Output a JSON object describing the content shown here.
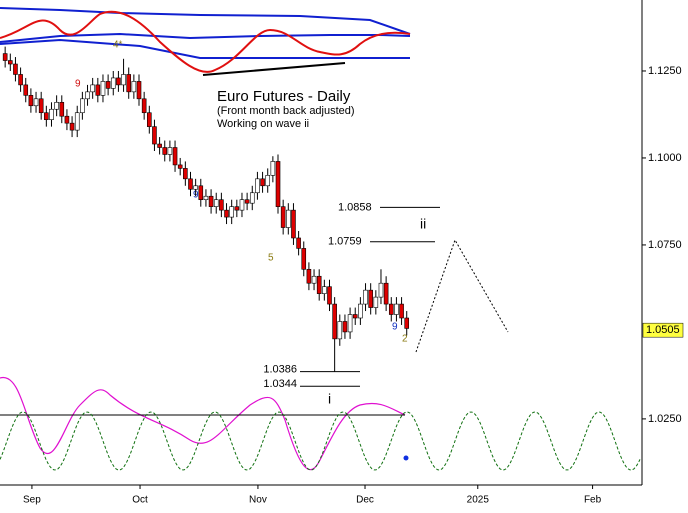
{
  "chart_data": {
    "type": "candlestick",
    "title": "Euro Futures - Daily",
    "subtitle": "(Front month back adjusted)",
    "note": "Working on wave ii",
    "x": [
      1,
      2,
      3,
      4,
      5,
      6,
      7,
      8,
      9,
      10,
      11,
      12,
      13,
      14,
      15,
      16,
      17,
      18,
      19,
      20,
      21,
      22,
      23,
      24,
      25,
      26,
      27,
      28,
      29,
      30,
      31,
      32,
      33,
      34,
      35,
      36,
      37,
      38,
      39,
      40,
      41,
      42,
      43,
      44,
      45,
      46,
      47,
      48,
      49,
      50,
      51,
      52,
      53,
      54,
      55,
      56,
      57,
      58,
      59,
      60,
      61,
      62,
      63,
      64,
      65,
      66,
      67,
      68,
      69,
      70,
      71,
      72,
      73,
      74,
      75,
      76,
      77,
      78,
      79
    ],
    "open": [
      1.13,
      1.128,
      1.127,
      1.124,
      1.121,
      1.118,
      1.115,
      1.117,
      1.113,
      1.111,
      1.114,
      1.116,
      1.112,
      1.11,
      1.108,
      1.113,
      1.117,
      1.119,
      1.121,
      1.118,
      1.122,
      1.12,
      1.123,
      1.121,
      1.124,
      1.119,
      1.122,
      1.117,
      1.113,
      1.109,
      1.104,
      1.103,
      1.101,
      1.103,
      1.098,
      1.097,
      1.094,
      1.091,
      1.092,
      1.088,
      1.089,
      1.086,
      1.088,
      1.085,
      1.083,
      1.086,
      1.085,
      1.088,
      1.087,
      1.09,
      1.094,
      1.092,
      1.095,
      1.099,
      1.086,
      1.08,
      1.085,
      1.077,
      1.074,
      1.068,
      1.064,
      1.066,
      1.061,
      1.063,
      1.058,
      1.048,
      1.053,
      1.05,
      1.055,
      1.054,
      1.058,
      1.062,
      1.057,
      1.06,
      1.064,
      1.058,
      1.055,
      1.058,
      1.054
    ],
    "high": [
      1.132,
      1.13,
      1.129,
      1.126,
      1.123,
      1.12,
      1.119,
      1.119,
      1.115,
      1.116,
      1.118,
      1.118,
      1.114,
      1.112,
      1.115,
      1.119,
      1.121,
      1.123,
      1.123,
      1.124,
      1.124,
      1.125,
      1.125,
      1.1285,
      1.126,
      1.124,
      1.124,
      1.119,
      1.115,
      1.111,
      1.106,
      1.105,
      1.105,
      1.105,
      1.1,
      1.099,
      1.096,
      1.094,
      1.094,
      1.091,
      1.091,
      1.09,
      1.09,
      1.087,
      1.088,
      1.088,
      1.09,
      1.09,
      1.092,
      1.096,
      1.096,
      1.097,
      1.1005,
      1.101,
      1.088,
      1.087,
      1.087,
      1.079,
      1.076,
      1.07,
      1.068,
      1.068,
      1.065,
      1.065,
      1.06,
      1.055,
      1.055,
      1.057,
      1.057,
      1.06,
      1.064,
      1.064,
      1.062,
      1.068,
      1.066,
      1.06,
      1.06,
      1.06,
      1.056
    ],
    "low": [
      1.126,
      1.125,
      1.122,
      1.119,
      1.116,
      1.113,
      1.113,
      1.111,
      1.109,
      1.109,
      1.112,
      1.11,
      1.108,
      1.106,
      1.106,
      1.111,
      1.115,
      1.117,
      1.116,
      1.116,
      1.118,
      1.118,
      1.119,
      1.119,
      1.117,
      1.117,
      1.115,
      1.111,
      1.107,
      1.102,
      1.101,
      1.099,
      1.099,
      1.096,
      1.095,
      1.092,
      1.089,
      1.089,
      1.086,
      1.086,
      1.084,
      1.084,
      1.083,
      1.081,
      1.081,
      1.083,
      1.083,
      1.085,
      1.085,
      1.088,
      1.09,
      1.09,
      1.093,
      1.084,
      1.078,
      1.078,
      1.075,
      1.072,
      1.066,
      1.062,
      1.062,
      1.059,
      1.059,
      1.056,
      1.0386,
      1.046,
      1.048,
      1.048,
      1.052,
      1.052,
      1.056,
      1.055,
      1.055,
      1.058,
      1.056,
      1.053,
      1.053,
      1.052,
      1.049
    ],
    "close": [
      1.128,
      1.127,
      1.124,
      1.121,
      1.118,
      1.115,
      1.117,
      1.113,
      1.111,
      1.114,
      1.116,
      1.112,
      1.11,
      1.108,
      1.113,
      1.117,
      1.119,
      1.121,
      1.118,
      1.122,
      1.12,
      1.123,
      1.121,
      1.124,
      1.119,
      1.122,
      1.117,
      1.113,
      1.109,
      1.104,
      1.103,
      1.101,
      1.103,
      1.098,
      1.097,
      1.094,
      1.091,
      1.092,
      1.088,
      1.089,
      1.086,
      1.088,
      1.085,
      1.083,
      1.086,
      1.085,
      1.088,
      1.087,
      1.09,
      1.094,
      1.092,
      1.095,
      1.099,
      1.086,
      1.08,
      1.085,
      1.077,
      1.074,
      1.068,
      1.064,
      1.066,
      1.061,
      1.063,
      1.058,
      1.048,
      1.053,
      1.05,
      1.055,
      1.054,
      1.058,
      1.062,
      1.057,
      1.06,
      1.064,
      1.058,
      1.055,
      1.058,
      1.054,
      1.051
    ],
    "up_color": "#ffffff",
    "down_color": "#dd0000",
    "xlim": [
      0,
      124.7
    ],
    "xticks": [
      {
        "value": 6.2,
        "label": "Sep"
      },
      {
        "value": 27.2,
        "label": "Oct"
      },
      {
        "value": 50.1,
        "label": "Nov"
      },
      {
        "value": 70.9,
        "label": "Dec"
      },
      {
        "value": 92.8,
        "label": "2025"
      },
      {
        "value": 115.1,
        "label": "Feb"
      }
    ],
    "ylim": [
      1.006,
      1.1454
    ],
    "yticks": [
      {
        "value": 1.125,
        "label": "1.1250"
      },
      {
        "value": 1.1,
        "label": "1.1000"
      },
      {
        "value": 1.075,
        "label": "1.0750"
      },
      {
        "value": 1.025,
        "label": "1.0250"
      }
    ],
    "last_price": {
      "value": 1.0505,
      "label": "1.0505"
    },
    "levels": [
      {
        "text": "1.0858",
        "value": 1.0858
      },
      {
        "text": "1.0759",
        "value": 1.0759
      },
      {
        "text": "1.0386",
        "value": 1.0386
      },
      {
        "text": "1.0344",
        "value": 1.0344
      }
    ],
    "wave_labels": [
      "ii",
      "i",
      "5",
      "4*",
      "9",
      "9",
      "9",
      "2"
    ]
  }
}
